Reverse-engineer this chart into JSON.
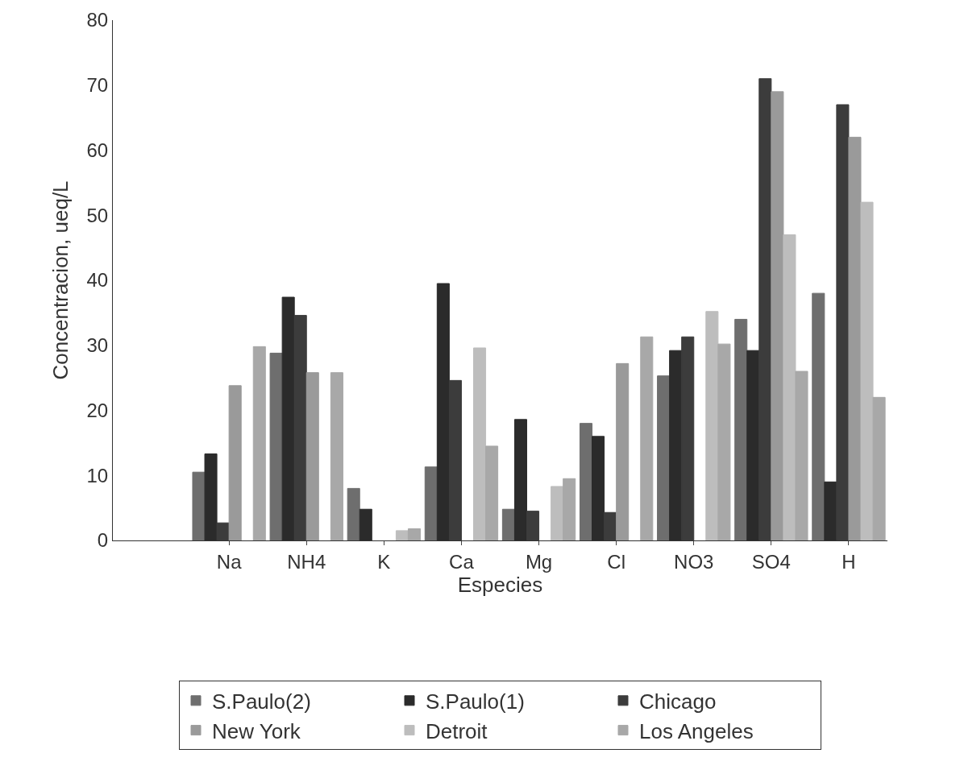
{
  "chart_data": {
    "type": "bar",
    "xlabel": "Especies",
    "ylabel": "Concentracion, ueq/L",
    "categories": [
      null,
      "Na",
      "NH4",
      "K",
      "Ca",
      "Mg",
      "Cl",
      "NO3",
      "SO4",
      "H"
    ],
    "series": [
      {
        "name": "S.Paulo(2)",
        "color": "#6e6e6e",
        "values": [
          null,
          10.5,
          28.8,
          8,
          11.3,
          4.8,
          18,
          25.3,
          34,
          38
        ]
      },
      {
        "name": "S.Paulo(1)",
        "color": "#2b2b2b",
        "values": [
          null,
          13.3,
          37.4,
          4.8,
          39.5,
          18.6,
          16,
          29.2,
          29.2,
          9
        ]
      },
      {
        "name": "Chicago",
        "color": "#3c3c3c",
        "values": [
          null,
          2.7,
          34.6,
          null,
          24.6,
          4.5,
          4.3,
          31.3,
          71,
          67
        ]
      },
      {
        "name": "New York",
        "color": "#9a9a9a",
        "values": [
          null,
          23.8,
          25.8,
          null,
          null,
          null,
          27.2,
          null,
          69,
          62
        ]
      },
      {
        "name": "Detroit",
        "color": "#bdbdbd",
        "values": [
          null,
          null,
          null,
          1.5,
          29.6,
          8.3,
          null,
          35.2,
          47,
          52
        ]
      },
      {
        "name": "Los Angeles",
        "color": "#a8a8a8",
        "values": [
          null,
          29.8,
          25.8,
          1.8,
          14.5,
          9.5,
          31.3,
          30.2,
          26,
          22
        ]
      }
    ],
    "ylim": [
      0,
      80
    ],
    "yticks": [
      0,
      10,
      20,
      30,
      40,
      50,
      60,
      70,
      80
    ],
    "legend": "bottom"
  }
}
